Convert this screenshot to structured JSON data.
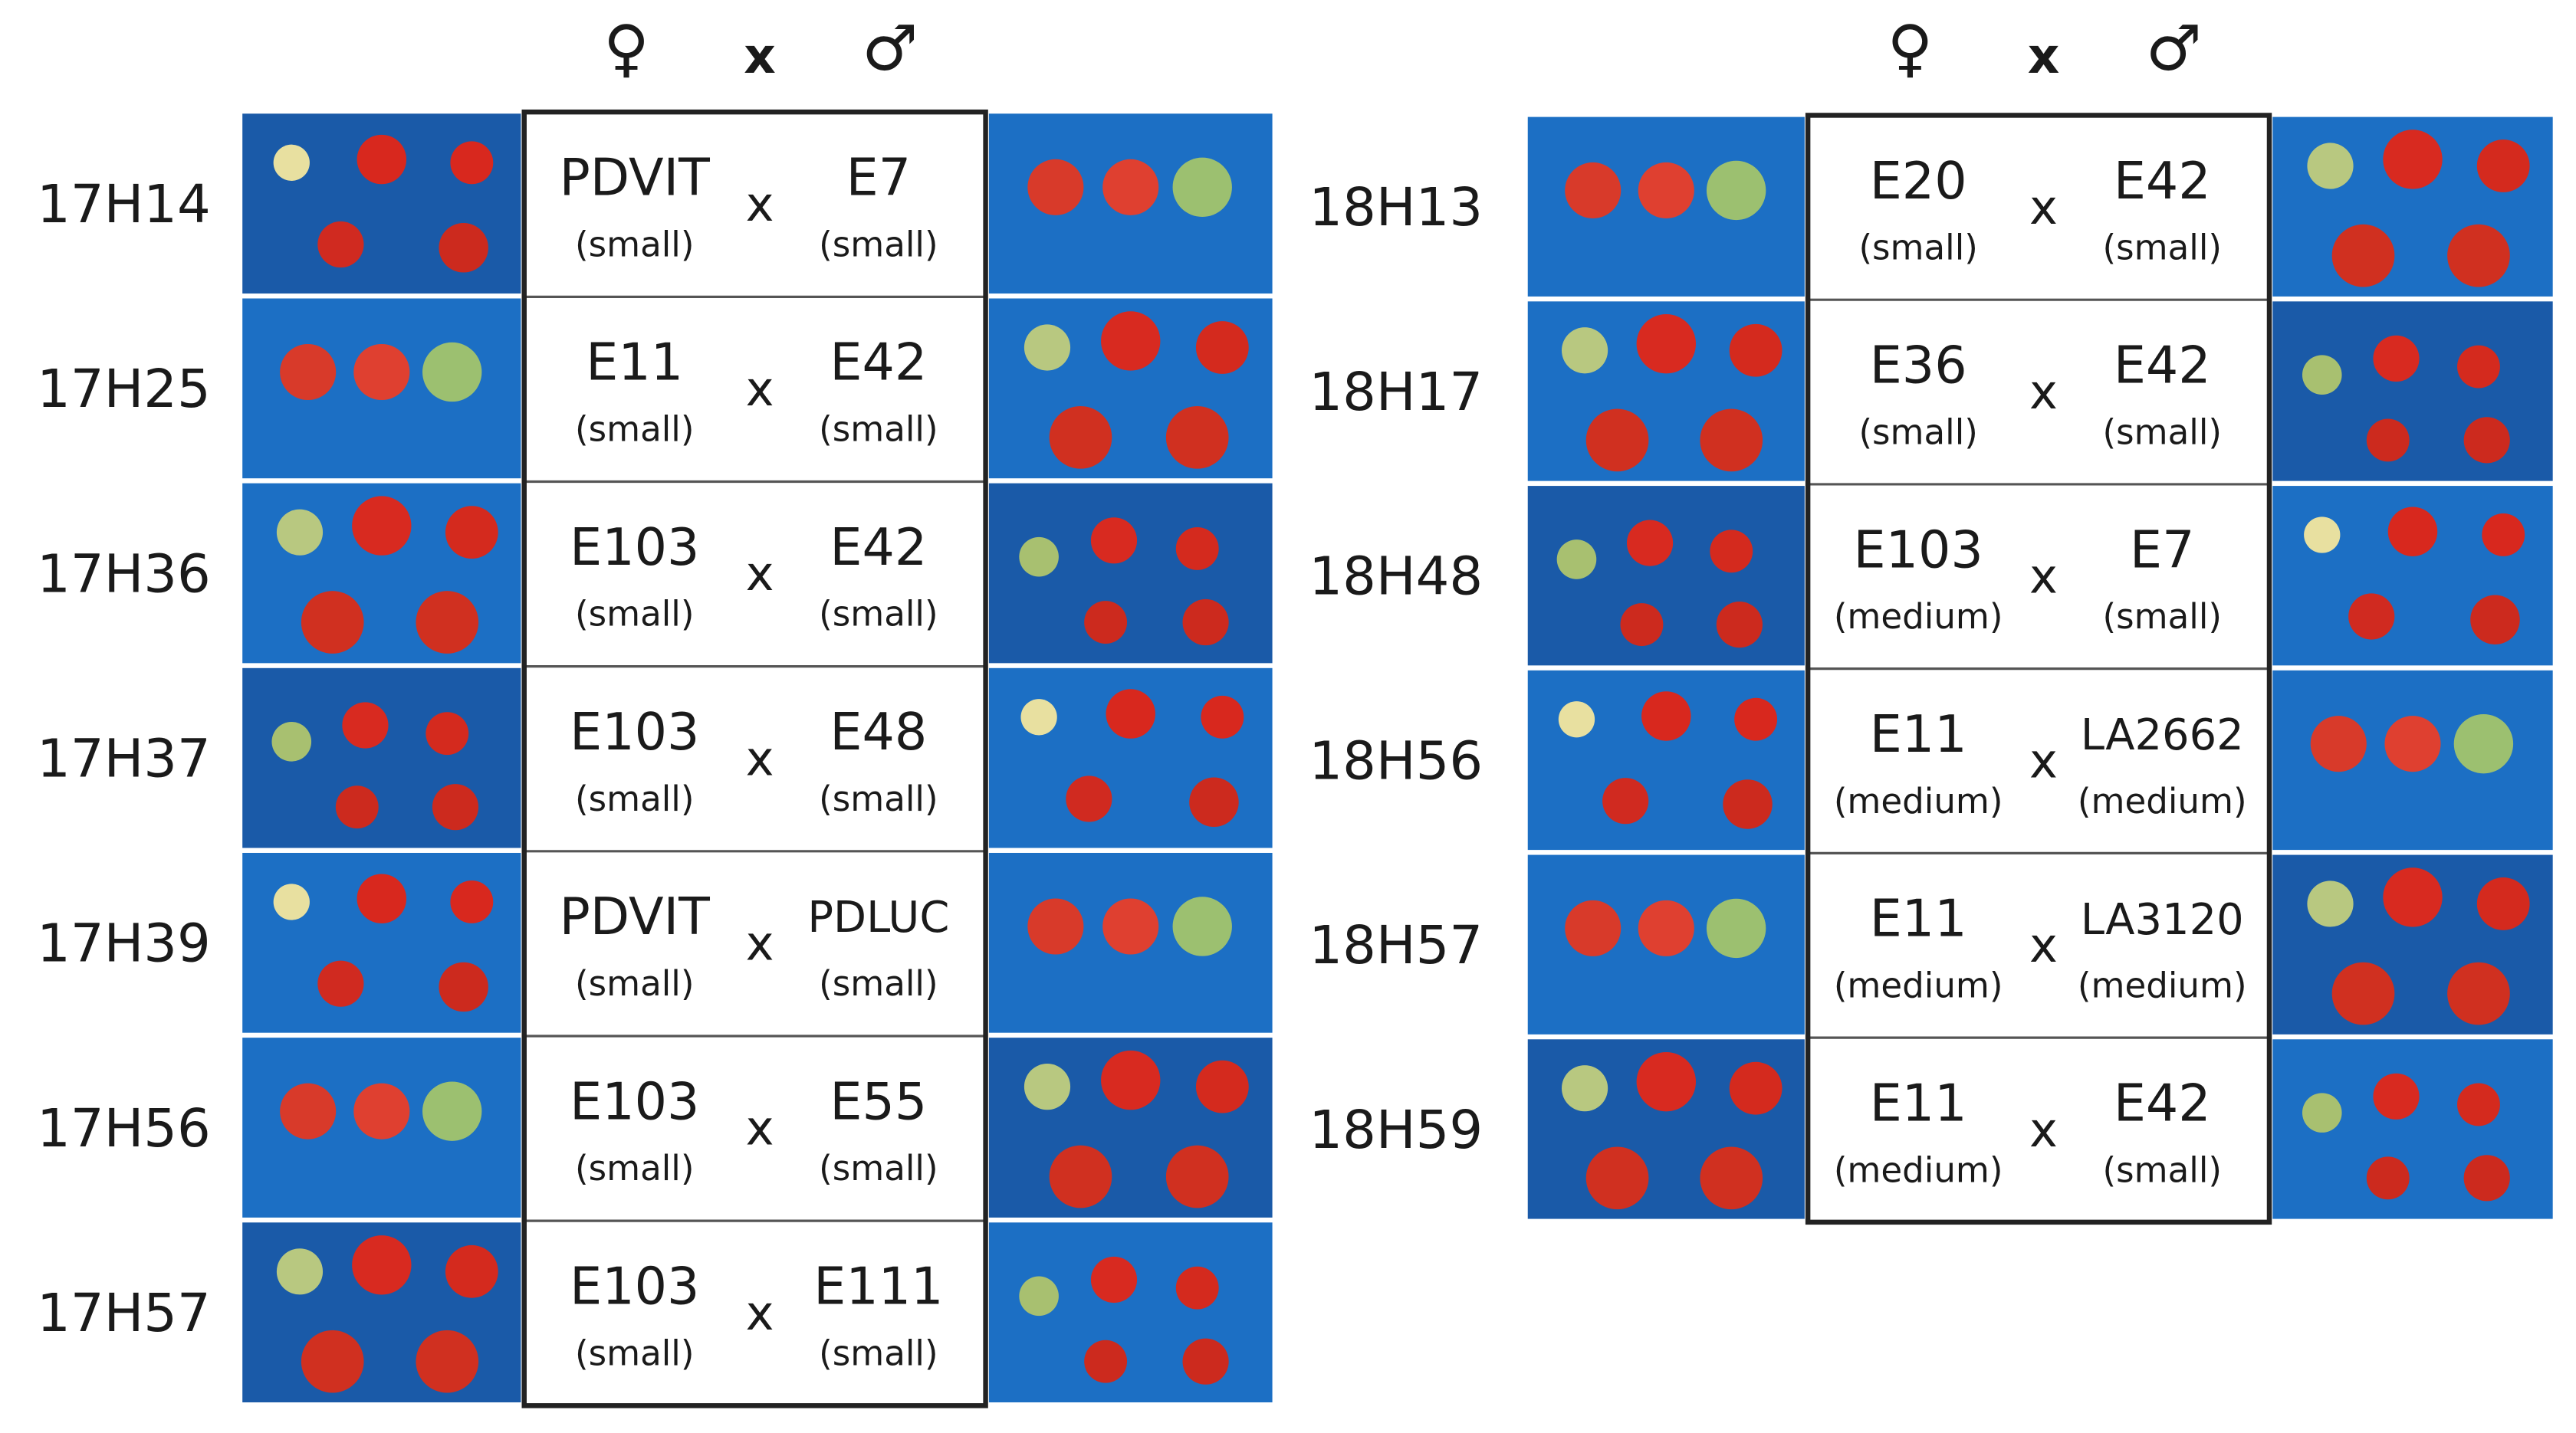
{
  "panels": [
    {
      "header": {
        "female": "♀",
        "cross": "x",
        "male": "♂"
      },
      "rows": [
        {
          "id": "17H14",
          "female": {
            "name": "PDVIT",
            "size": "(small)"
          },
          "cross": "x",
          "male": {
            "name": "E7",
            "size": "(small)"
          }
        },
        {
          "id": "17H25",
          "female": {
            "name": "E11",
            "size": "(small)"
          },
          "cross": "x",
          "male": {
            "name": "E42",
            "size": "(small)"
          }
        },
        {
          "id": "17H36",
          "female": {
            "name": "E103",
            "size": "(small)"
          },
          "cross": "x",
          "male": {
            "name": "E42",
            "size": "(small)"
          }
        },
        {
          "id": "17H37",
          "female": {
            "name": "E103",
            "size": "(small)"
          },
          "cross": "x",
          "male": {
            "name": "E48",
            "size": "(small)"
          }
        },
        {
          "id": "17H39",
          "female": {
            "name": "PDVIT",
            "size": "(small)"
          },
          "cross": "x",
          "male": {
            "name": "PDLUC",
            "size": "(small)"
          }
        },
        {
          "id": "17H56",
          "female": {
            "name": "E103",
            "size": "(small)"
          },
          "cross": "x",
          "male": {
            "name": "E55",
            "size": "(small)"
          }
        },
        {
          "id": "17H57",
          "female": {
            "name": "E103",
            "size": "(small)"
          },
          "cross": "x",
          "male": {
            "name": "E111",
            "size": "(small)"
          }
        }
      ]
    },
    {
      "header": {
        "female": "♀",
        "cross": "x",
        "male": "♂"
      },
      "rows": [
        {
          "id": "18H13",
          "female": {
            "name": "E20",
            "size": "(small)"
          },
          "cross": "x",
          "male": {
            "name": "E42",
            "size": "(small)"
          }
        },
        {
          "id": "18H17",
          "female": {
            "name": "E36",
            "size": "(small)"
          },
          "cross": "x",
          "male": {
            "name": "E42",
            "size": "(small)"
          }
        },
        {
          "id": "18H48",
          "female": {
            "name": "E103",
            "size": "(medium)"
          },
          "cross": "x",
          "male": {
            "name": "E7",
            "size": "(small)"
          }
        },
        {
          "id": "18H56",
          "female": {
            "name": "E11",
            "size": "(medium)"
          },
          "cross": "x",
          "male": {
            "name": "LA2662",
            "size": "(medium)"
          }
        },
        {
          "id": "18H57",
          "female": {
            "name": "E11",
            "size": "(medium)"
          },
          "cross": "x",
          "male": {
            "name": "LA3120",
            "size": "(medium)"
          }
        },
        {
          "id": "18H59",
          "female": {
            "name": "E11",
            "size": "(medium)"
          },
          "cross": "x",
          "male": {
            "name": "E42",
            "size": "(small)"
          }
        }
      ]
    }
  ]
}
